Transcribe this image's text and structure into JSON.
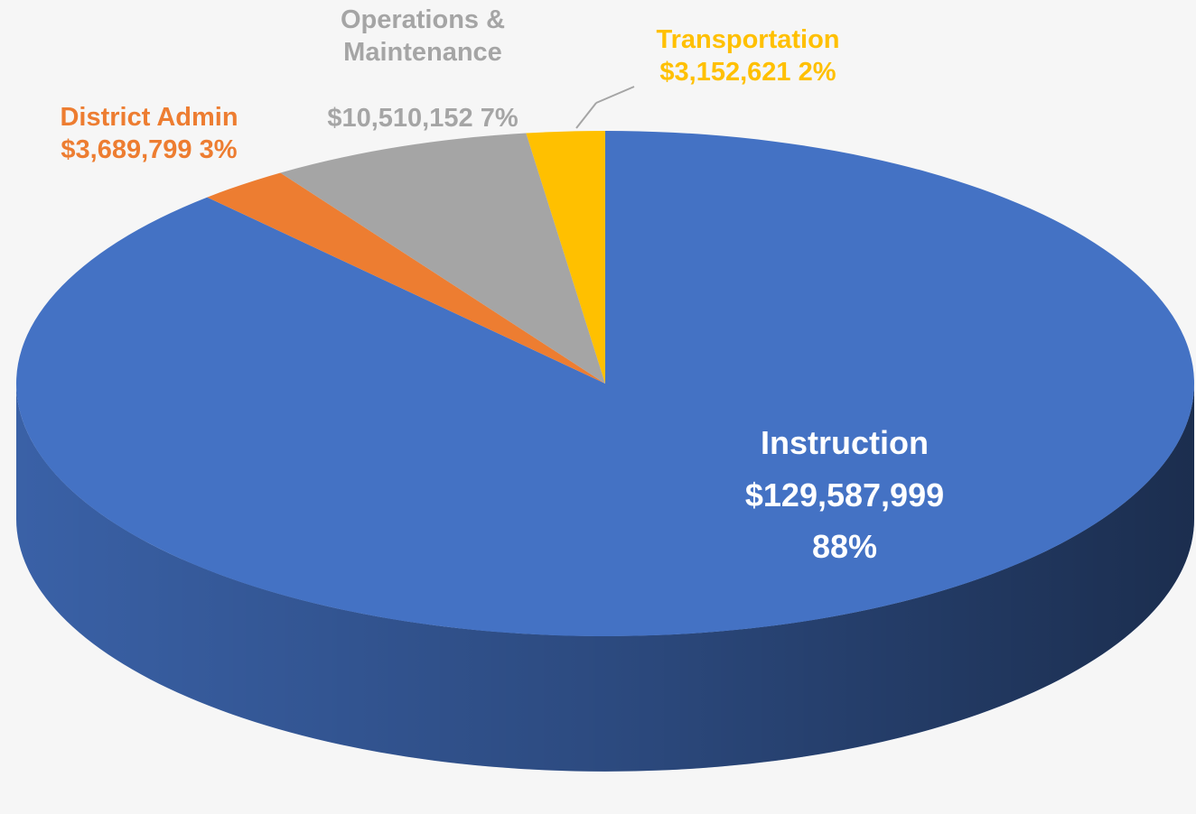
{
  "chart_data": {
    "type": "pie",
    "categories": [
      "Instruction",
      "District Admin",
      "Operations & Maintenance",
      "Transportation"
    ],
    "values": [
      129587999,
      3689799,
      10510152,
      3152621
    ],
    "value_labels": [
      "$129,587,999",
      "$3,689,799",
      "$10,510,152",
      "$3,152,621"
    ],
    "percent_labels": [
      "88%",
      "3%",
      "7%",
      "2%"
    ],
    "colors": [
      "#4472c4",
      "#ed7d31",
      "#a5a5a5",
      "#ffc000"
    ],
    "label_colors": [
      "#ffffff",
      "#ed7d31",
      "#a5a5a5",
      "#ffc000"
    ]
  }
}
